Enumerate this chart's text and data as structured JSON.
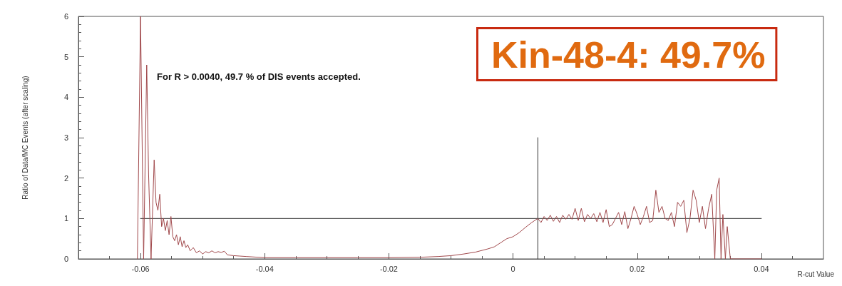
{
  "chart_data": {
    "type": "line",
    "xlabel": "R-cut Value",
    "ylabel": "Ratio of Data/MC Events (after scaling)",
    "annotations": [
      "For R > 0.0040, 49.7 % of DIS events accepted.",
      "Kin-48-4: 49.7%"
    ],
    "xlim": [
      -0.07,
      0.05
    ],
    "xticks": [
      -0.06,
      -0.04,
      -0.02,
      0,
      0.02,
      0.04
    ],
    "ylim": [
      0,
      6
    ],
    "yticks": [
      0,
      1,
      2,
      3,
      4,
      5,
      6
    ],
    "grid": false,
    "series": [
      {
        "color": "#a0484b",
        "x": [
          -0.0605,
          -0.06,
          -0.0595,
          -0.059,
          -0.0587,
          -0.0583,
          -0.0578,
          -0.0575,
          -0.0572,
          -0.0569,
          -0.0566,
          -0.0563,
          -0.056,
          -0.0557,
          -0.0554,
          -0.0551,
          -0.0548,
          -0.0545,
          -0.0542,
          -0.0539,
          -0.0536,
          -0.0533,
          -0.053,
          -0.0527,
          -0.0524,
          -0.052,
          -0.0515,
          -0.051,
          -0.0505,
          -0.05,
          -0.0495,
          -0.049,
          -0.0485,
          -0.048,
          -0.0475,
          -0.047,
          -0.0465,
          -0.046,
          -0.045,
          -0.044,
          -0.043,
          -0.042,
          -0.04,
          -0.035,
          -0.03,
          -0.025,
          -0.02,
          -0.015,
          -0.012,
          -0.01,
          -0.008,
          -0.006,
          -0.004,
          -0.003,
          -0.002,
          -0.001,
          0,
          0.001,
          0.002,
          0.003,
          0.0035,
          0.004,
          0.0045,
          0.005,
          0.0055,
          0.006,
          0.0065,
          0.007,
          0.0075,
          0.008,
          0.0085,
          0.009,
          0.0095,
          0.01,
          0.0105,
          0.011,
          0.0115,
          0.012,
          0.0125,
          0.013,
          0.0135,
          0.014,
          0.0145,
          0.015,
          0.0155,
          0.016,
          0.0165,
          0.017,
          0.0175,
          0.018,
          0.0185,
          0.019,
          0.0195,
          0.02,
          0.0205,
          0.021,
          0.0215,
          0.022,
          0.0225,
          0.023,
          0.0235,
          0.024,
          0.0245,
          0.025,
          0.0255,
          0.026,
          0.0265,
          0.027,
          0.0275,
          0.028,
          0.0285,
          0.029,
          0.0295,
          0.03,
          0.0305,
          0.031,
          0.0315,
          0.032,
          0.0325,
          0.0328,
          0.0332,
          0.0335,
          0.0338,
          0.0342,
          0.0345,
          0.035,
          0.04
        ],
        "values": [
          0,
          6,
          0,
          4.8,
          2.1,
          0,
          2.45,
          1.4,
          1.2,
          1.6,
          0.8,
          1.0,
          0.7,
          0.95,
          0.6,
          1.05,
          0.55,
          0.45,
          0.6,
          0.35,
          0.55,
          0.3,
          0.45,
          0.28,
          0.35,
          0.2,
          0.28,
          0.15,
          0.2,
          0.12,
          0.18,
          0.15,
          0.2,
          0.15,
          0.18,
          0.16,
          0.19,
          0.1,
          0.08,
          0.07,
          0.06,
          0.05,
          0.03,
          0.03,
          0.03,
          0.03,
          0.03,
          0.04,
          0.06,
          0.08,
          0.12,
          0.17,
          0.25,
          0.3,
          0.4,
          0.5,
          0.55,
          0.65,
          0.78,
          0.9,
          0.95,
          1.0,
          0.9,
          1.05,
          0.95,
          1.08,
          0.93,
          1.05,
          0.9,
          1.08,
          0.98,
          1.1,
          0.98,
          1.25,
          0.95,
          1.25,
          0.92,
          1.1,
          1.0,
          1.12,
          0.92,
          1.15,
          0.9,
          1.22,
          0.8,
          0.85,
          1.0,
          1.15,
          0.85,
          1.17,
          0.75,
          1.0,
          1.3,
          1.1,
          0.85,
          1.05,
          1.3,
          0.9,
          0.95,
          1.7,
          1.15,
          1.3,
          1.0,
          0.95,
          1.15,
          0.8,
          1.4,
          1.3,
          1.45,
          0.65,
          1.0,
          1.7,
          1.45,
          0.9,
          1.3,
          0.75,
          1.25,
          1.6,
          0,
          1.7,
          2.0,
          0,
          1.1,
          0,
          0.8,
          0,
          0
        ]
      },
      {
        "color": "#333333",
        "marker": "none",
        "x": [
          -0.06,
          0.04
        ],
        "values": [
          1,
          1
        ]
      },
      {
        "color": "#333333",
        "marker": "none",
        "x": [
          0.004,
          0.004
        ],
        "values": [
          0,
          3
        ]
      }
    ]
  }
}
